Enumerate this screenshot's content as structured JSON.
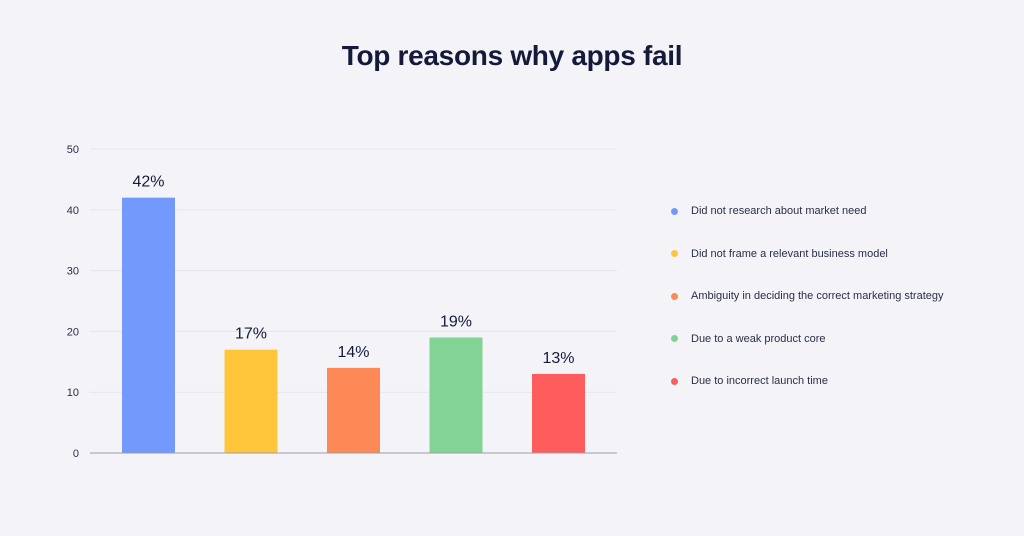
{
  "chart_data": {
    "type": "bar",
    "title": "Top reasons why apps fail",
    "categories": [
      "Did not research about market need",
      "Did not frame a relevant business model",
      "Ambiguity in deciding the correct marketing strategy",
      "Due to a weak product core",
      "Due to incorrect launch time"
    ],
    "values": [
      42,
      17,
      14,
      19,
      13
    ],
    "data_labels": [
      "42%",
      "17%",
      "14%",
      "19%",
      "13%"
    ],
    "colors": [
      "#7399fc",
      "#ffc63b",
      "#fd8a56",
      "#82d394",
      "#ff5d5d"
    ],
    "ylim": [
      0,
      50
    ],
    "yticks": [
      "0",
      "10",
      "20",
      "30",
      "40",
      "50"
    ],
    "xlabel": "",
    "ylabel": "",
    "grid": true,
    "legend_position": "right"
  }
}
